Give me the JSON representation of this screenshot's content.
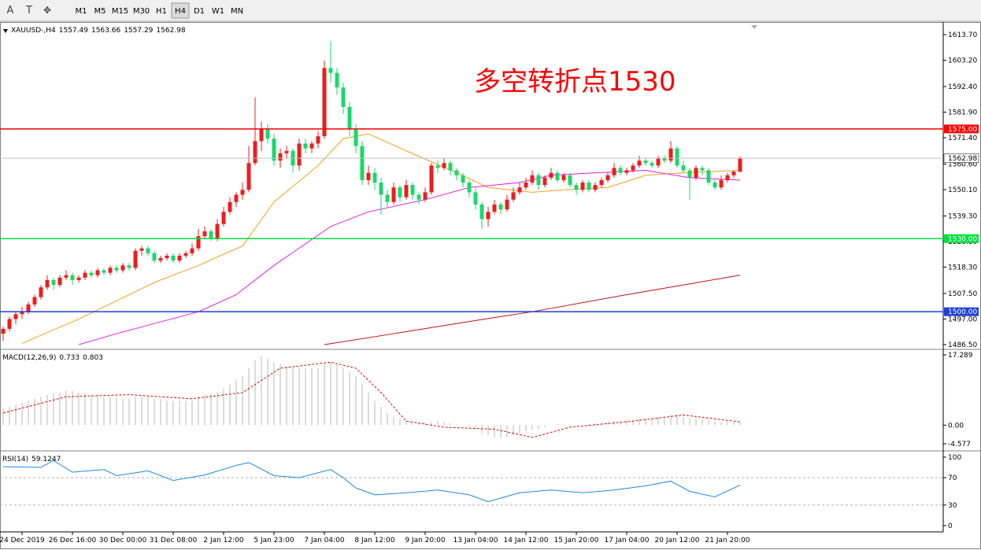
{
  "toolbar": {
    "tools": [
      "A",
      "T"
    ],
    "timeframes": [
      "M1",
      "M5",
      "M15",
      "M30",
      "H1",
      "H4",
      "D1",
      "W1",
      "MN"
    ],
    "active": "H4"
  },
  "chart_data": [
    {
      "type": "candlestick",
      "symbol": "XAUUSD-,H4",
      "annotation": "多空转折点1530",
      "annotation_color": "#ff0000",
      "up_color": "#ee1c1c",
      "down_color": "#19d86a",
      "ylim": [
        1486.5,
        1613.7
      ],
      "yticks": [
        {
          "value": 1613.7,
          "label": "1613.70"
        },
        {
          "value": 1603.2,
          "label": "1603.20"
        },
        {
          "value": 1592.4,
          "label": "1592.40"
        },
        {
          "value": 1581.9,
          "label": "1581.90"
        },
        {
          "value": 1571.4,
          "label": "1571.40"
        },
        {
          "value": 1560.6,
          "label": "1560.60"
        },
        {
          "value": 1550.1,
          "label": "1550.10"
        },
        {
          "value": 1539.3,
          "label": "1539.30"
        },
        {
          "value": 1528.8,
          "label": "1528.80"
        },
        {
          "value": 1518.3,
          "label": "1518.30"
        },
        {
          "value": 1507.5,
          "label": "1507.50"
        },
        {
          "value": 1497,
          "label": "1497.00"
        },
        {
          "value": 1486.5,
          "label": "1486.50"
        }
      ],
      "levels": [
        {
          "value": 1575,
          "label": "1575.00",
          "color": "#ff0000"
        },
        {
          "value": 1530,
          "label": "1530.00",
          "color": "#00e040"
        },
        {
          "value": 1500,
          "label": "1500.00",
          "color": "#1f3fd8"
        }
      ],
      "categories": [
        null,
        null,
        null,
        "24 Dec 2019",
        null,
        null,
        null,
        null,
        null,
        null,
        null,
        "26 Dec 16:00",
        null,
        null,
        null,
        null,
        null,
        null,
        null,
        "30 Dec 00:00",
        null,
        null,
        null,
        null,
        null,
        null,
        null,
        "31 Dec 08:00",
        null,
        null,
        null,
        null,
        null,
        null,
        null,
        "2 Jan 12:00",
        null,
        null,
        null,
        null,
        null,
        null,
        null,
        "5 Jan 23:00",
        null,
        null,
        null,
        null,
        null,
        null,
        null,
        "7 Jan 04:00",
        null,
        null,
        null,
        null,
        null,
        null,
        null,
        "8 Jan 12:00",
        null,
        null,
        null,
        null,
        null,
        null,
        null,
        "9 Jan 20:00",
        null,
        null,
        null,
        null,
        null,
        null,
        null,
        "13 Jan 04:00",
        null,
        null,
        null,
        null,
        null,
        null,
        null,
        "14 Jan 12:00",
        null,
        null,
        null,
        null,
        null,
        null,
        null,
        "15 Jan 20:00",
        null,
        null,
        null,
        null,
        null,
        null,
        null,
        "17 Jan 04:00",
        null,
        null,
        null,
        null,
        null,
        null,
        null,
        "20 Jan 12:00",
        null,
        null,
        null,
        null,
        null,
        null,
        null,
        "21 Jan 20:00",
        null,
        null
      ],
      "ohlc": [
        [
          1491,
          1494,
          1488,
          1493
        ],
        [
          1493,
          1498,
          1492,
          1497
        ],
        [
          1497,
          1500,
          1495,
          1499
        ],
        [
          1499,
          1502,
          1497,
          1500
        ],
        [
          1500,
          1504,
          1499,
          1503
        ],
        [
          1503,
          1507,
          1502,
          1506
        ],
        [
          1506,
          1511,
          1505,
          1510
        ],
        [
          1510,
          1515,
          1509,
          1513
        ],
        [
          1513,
          1514,
          1509,
          1511
        ],
        [
          1511,
          1515,
          1510,
          1514
        ],
        [
          1514,
          1517,
          1513,
          1515
        ],
        [
          1515,
          1516,
          1511,
          1513
        ],
        [
          1513,
          1515,
          1512,
          1514
        ],
        [
          1514,
          1517,
          1513,
          1516
        ],
        [
          1516,
          1517,
          1514,
          1515
        ],
        [
          1515,
          1518,
          1514,
          1517
        ],
        [
          1517,
          1518,
          1515,
          1516
        ],
        [
          1516,
          1519,
          1515,
          1518
        ],
        [
          1518,
          1519,
          1516,
          1517
        ],
        [
          1517,
          1520,
          1516,
          1519
        ],
        [
          1519,
          1520,
          1517,
          1518
        ],
        [
          1518,
          1526,
          1517,
          1525
        ],
        [
          1525,
          1527,
          1523,
          1526
        ],
        [
          1526,
          1527,
          1523,
          1524
        ],
        [
          1524,
          1525,
          1520,
          1521
        ],
        [
          1521,
          1523,
          1520,
          1522
        ],
        [
          1522,
          1524,
          1521,
          1523
        ],
        [
          1523,
          1524,
          1520,
          1521
        ],
        [
          1521,
          1524,
          1520,
          1523
        ],
        [
          1523,
          1525,
          1522,
          1524
        ],
        [
          1524,
          1528,
          1523,
          1526
        ],
        [
          1526,
          1534,
          1525,
          1531
        ],
        [
          1531,
          1535,
          1530,
          1533
        ],
        [
          1533,
          1534,
          1529,
          1530
        ],
        [
          1530,
          1538,
          1529,
          1536
        ],
        [
          1536,
          1543,
          1535,
          1541
        ],
        [
          1541,
          1547,
          1540,
          1545
        ],
        [
          1545,
          1549,
          1543,
          1548
        ],
        [
          1548,
          1553,
          1546,
          1550
        ],
        [
          1550,
          1568,
          1549,
          1561
        ],
        [
          1561,
          1588,
          1560,
          1570
        ],
        [
          1570,
          1578,
          1566,
          1575
        ],
        [
          1575,
          1577,
          1569,
          1571
        ],
        [
          1571,
          1573,
          1560,
          1562
        ],
        [
          1562,
          1567,
          1559,
          1565
        ],
        [
          1565,
          1568,
          1563,
          1566
        ],
        [
          1566,
          1567,
          1557,
          1560
        ],
        [
          1560,
          1571,
          1558,
          1569
        ],
        [
          1569,
          1571,
          1565,
          1567
        ],
        [
          1567,
          1570,
          1565,
          1569
        ],
        [
          1569,
          1574,
          1567,
          1572
        ],
        [
          1572,
          1603,
          1571,
          1600
        ],
        [
          1600,
          1611,
          1594,
          1598
        ],
        [
          1598,
          1600,
          1589,
          1592
        ],
        [
          1592,
          1594,
          1581,
          1584
        ],
        [
          1584,
          1586,
          1572,
          1575
        ],
        [
          1575,
          1577,
          1565,
          1568
        ],
        [
          1568,
          1570,
          1552,
          1554
        ],
        [
          1554,
          1560,
          1552,
          1557
        ],
        [
          1557,
          1559,
          1550,
          1553
        ],
        [
          1553,
          1555,
          1540,
          1548
        ],
        [
          1548,
          1550,
          1543,
          1545
        ],
        [
          1545,
          1553,
          1544,
          1551
        ],
        [
          1551,
          1552,
          1545,
          1547
        ],
        [
          1547,
          1554,
          1546,
          1552
        ],
        [
          1552,
          1553,
          1546,
          1548
        ],
        [
          1548,
          1549,
          1544,
          1546
        ],
        [
          1546,
          1551,
          1545,
          1549
        ],
        [
          1549,
          1561,
          1548,
          1560
        ],
        [
          1560,
          1562,
          1557,
          1559
        ],
        [
          1559,
          1563,
          1558,
          1561
        ],
        [
          1561,
          1562,
          1556,
          1558
        ],
        [
          1558,
          1559,
          1554,
          1556
        ],
        [
          1556,
          1557,
          1551,
          1553
        ],
        [
          1553,
          1554,
          1547,
          1549
        ],
        [
          1549,
          1551,
          1542,
          1544
        ],
        [
          1544,
          1545,
          1534,
          1538
        ],
        [
          1538,
          1543,
          1535,
          1541
        ],
        [
          1541,
          1546,
          1540,
          1544
        ],
        [
          1544,
          1545,
          1540,
          1542
        ],
        [
          1542,
          1548,
          1541,
          1546
        ],
        [
          1546,
          1551,
          1545,
          1549
        ],
        [
          1549,
          1553,
          1548,
          1551
        ],
        [
          1551,
          1555,
          1550,
          1553
        ],
        [
          1553,
          1558,
          1552,
          1556
        ],
        [
          1556,
          1557,
          1550,
          1552
        ],
        [
          1552,
          1556,
          1551,
          1555
        ],
        [
          1555,
          1559,
          1554,
          1557
        ],
        [
          1557,
          1558,
          1553,
          1554
        ],
        [
          1554,
          1557,
          1553,
          1556
        ],
        [
          1556,
          1557,
          1551,
          1552
        ],
        [
          1552,
          1553,
          1548,
          1550
        ],
        [
          1550,
          1554,
          1549,
          1553
        ],
        [
          1553,
          1554,
          1549,
          1550
        ],
        [
          1550,
          1553,
          1549,
          1552
        ],
        [
          1552,
          1555,
          1551,
          1554
        ],
        [
          1554,
          1557,
          1553,
          1556
        ],
        [
          1556,
          1561,
          1555,
          1559
        ],
        [
          1559,
          1560,
          1556,
          1557
        ],
        [
          1557,
          1559,
          1556,
          1558
        ],
        [
          1558,
          1561,
          1557,
          1560
        ],
        [
          1560,
          1564,
          1559,
          1562
        ],
        [
          1562,
          1563,
          1560,
          1561
        ],
        [
          1561,
          1562,
          1559,
          1560
        ],
        [
          1560,
          1564,
          1559,
          1563
        ],
        [
          1563,
          1564,
          1561,
          1562
        ],
        [
          1562,
          1570,
          1561,
          1567
        ],
        [
          1567,
          1568,
          1559,
          1560
        ],
        [
          1560,
          1562,
          1557,
          1558
        ],
        [
          1558,
          1559,
          1546,
          1555
        ],
        [
          1555,
          1560,
          1554,
          1559
        ],
        [
          1559,
          1560,
          1556,
          1558
        ],
        [
          1558,
          1559,
          1552,
          1553
        ],
        [
          1553,
          1554,
          1550,
          1551
        ],
        [
          1551,
          1556,
          1550,
          1554
        ],
        [
          1554,
          1557,
          1553,
          1556
        ],
        [
          1556,
          1558,
          1555,
          1557.49
        ],
        [
          1557.49,
          1563.66,
          1557.29,
          1562.98
        ]
      ],
      "series": [
        {
          "color": "#f5a020",
          "x": [
            3,
            12,
            24,
            31,
            38,
            43,
            50,
            54,
            58,
            64,
            72,
            77,
            84,
            89,
            96,
            102,
            108,
            117
          ],
          "values": [
            1487,
            1497,
            1512,
            1519,
            1527,
            1545,
            1560,
            1571,
            1573,
            1566,
            1557,
            1551,
            1549,
            1550,
            1551,
            1556,
            1557,
            1558
          ]
        },
        {
          "color": "#e020e0",
          "x": [
            12,
            18,
            31,
            37,
            43,
            52,
            58,
            67,
            74,
            82,
            87,
            94,
            102,
            109,
            117
          ],
          "values": [
            1486.5,
            1491,
            1500,
            1507,
            1519,
            1535,
            1541,
            1546,
            1551,
            1553,
            1556,
            1557,
            1558,
            1555,
            1554
          ]
        },
        {
          "color": "#c01010",
          "x": [
            51,
            62,
            74,
            84,
            99,
            108,
            117
          ],
          "values": [
            1486.5,
            1491,
            1496,
            1500,
            1507,
            1511,
            1515
          ]
        }
      ]
    },
    {
      "type": "macd",
      "title": "MACD(12,26,9)",
      "ylim": [
        -4.577,
        17.289
      ],
      "yticks": [
        17.289,
        {
          "value": 0,
          "label": "0.00"
        },
        -4.577
      ],
      "histogram": {
        "color": "#b8b8b8",
        "values": [
          4,
          4.5,
          5,
          5.5,
          6,
          6.5,
          7,
          7.5,
          8,
          8,
          8.5,
          8.5,
          8,
          8,
          7.5,
          7.5,
          7,
          7,
          7,
          6.5,
          6.5,
          7,
          7,
          7,
          6.5,
          6.5,
          6,
          6,
          6,
          6,
          6,
          7,
          7.5,
          7.5,
          8,
          9,
          10,
          11,
          12,
          14,
          16,
          17,
          16.5,
          15.5,
          15,
          14.5,
          14,
          14,
          14,
          14,
          14,
          15,
          15.5,
          15,
          14,
          13,
          12,
          10,
          8,
          6,
          4.5,
          3,
          2,
          1.5,
          1,
          0.5,
          0.3,
          0.5,
          0.8,
          1,
          0.8,
          0.5,
          0.2,
          0,
          -0.5,
          -1,
          -2,
          -2.5,
          -3,
          -3,
          -3,
          -2.5,
          -2,
          -1.5,
          -1,
          -1,
          -0.5,
          0,
          0.3,
          0,
          0.2,
          -0.2,
          0,
          0.3,
          0.5,
          0.5,
          0.7,
          1,
          1,
          1.2,
          1.3,
          1.5,
          1.7,
          1.8,
          2,
          2,
          2.5,
          2.5,
          2,
          1.8,
          1.6,
          1.5,
          1.2,
          1,
          0.8,
          0.9,
          0.8,
          0.733
        ]
      },
      "signal": {
        "color": "#d01010",
        "x": [
          0,
          10,
          20,
          30,
          38,
          44,
          52,
          56,
          60,
          64,
          70,
          78,
          84,
          90,
          100,
          108,
          117
        ],
        "values": [
          3,
          7,
          7.5,
          6.5,
          8,
          14,
          15.5,
          14,
          8,
          1,
          -0.5,
          -1,
          -3,
          -0.5,
          1,
          2.5,
          0.803
        ]
      }
    },
    {
      "type": "line",
      "title": "RSI(14)",
      "ylim": [
        0,
        100
      ],
      "yticks": [
        100,
        70,
        30,
        0
      ],
      "grid": true,
      "color": "#1e88e5",
      "x": [
        0,
        6,
        8,
        11,
        16,
        18,
        23,
        27,
        32,
        37,
        39,
        43,
        47,
        52,
        54,
        56,
        59,
        64,
        69,
        74,
        77,
        82,
        87,
        92,
        97,
        102,
        106,
        109,
        113,
        117
      ],
      "values": [
        86,
        85,
        95,
        78,
        82,
        73,
        80,
        66,
        74,
        88,
        92,
        73,
        70,
        82,
        70,
        55,
        45,
        48,
        52,
        45,
        35,
        48,
        52,
        48,
        52,
        58,
        65,
        50,
        42,
        59.1247
      ]
    }
  ]
}
